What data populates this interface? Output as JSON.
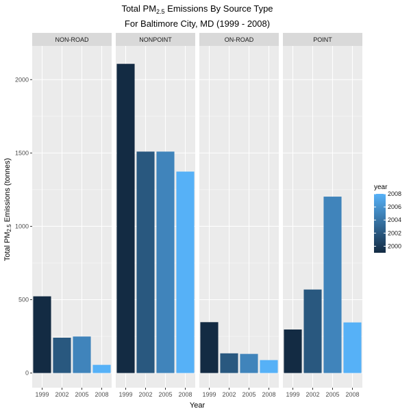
{
  "chart_data": {
    "type": "bar",
    "title": {
      "line1_prefix": "Total PM",
      "line1_sub": "2.5",
      "line1_suffix": " Emissions By Source Type",
      "line2": "For Baltimore City, MD (1999 - 2008)"
    },
    "xlabel": "Year",
    "ylabel": {
      "prefix": "Total PM",
      "sub": "2.5",
      "suffix": " Emissions (tonnes)"
    },
    "categories": [
      "1999",
      "2002",
      "2005",
      "2008"
    ],
    "ylim": [
      -100,
      2230
    ],
    "yticks": [
      0,
      500,
      1000,
      1500,
      2000
    ],
    "ytick_labels": [
      "0",
      "500",
      "1000",
      "1500",
      "2000"
    ],
    "facets": [
      {
        "name": "NON-ROAD",
        "values": [
          522.94,
          240.85,
          248.93,
          55.82
        ]
      },
      {
        "name": "NONPOINT",
        "values": [
          2107.63,
          1509.5,
          1509.5,
          1373.21
        ]
      },
      {
        "name": "ON-ROAD",
        "values": [
          346.82,
          134.31,
          130.43,
          88.28
        ]
      },
      {
        "name": "POINT",
        "values": [
          296.8,
          569.26,
          1202.49,
          344.98
        ]
      }
    ],
    "legend": {
      "title": "year",
      "range": [
        1999,
        2008
      ],
      "ticks": [
        "2000",
        "2002",
        "2004",
        "2006",
        "2008"
      ],
      "position": "right"
    },
    "colors": {
      "low": "#132B43",
      "high": "#56B1F7",
      "panel_bg": "#EBEBEB",
      "strip_bg": "#D9D9D9",
      "grid": "#FFFFFF"
    }
  }
}
